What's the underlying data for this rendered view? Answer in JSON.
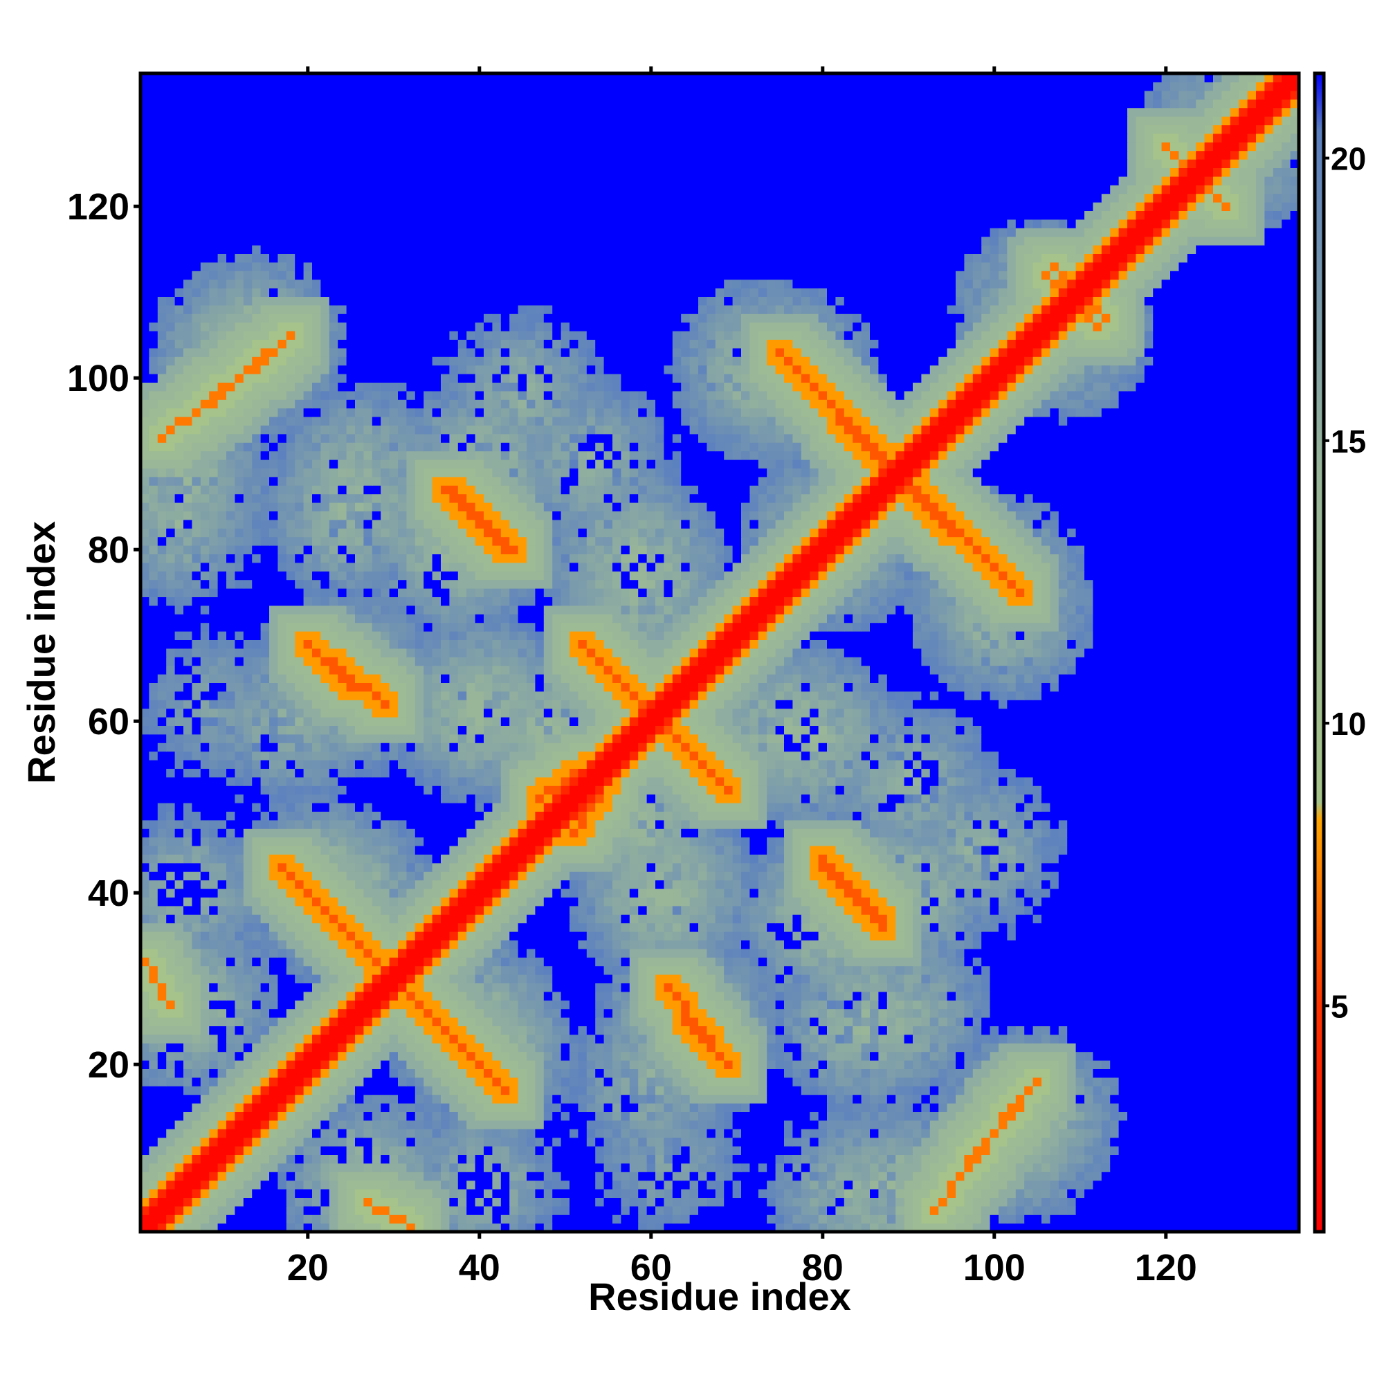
{
  "chart_data": {
    "type": "heatmap",
    "title": "",
    "xlabel": "Residue index",
    "ylabel": "Residue index",
    "n_residues": 135,
    "xlim": [
      0.5,
      135.5
    ],
    "ylim": [
      0.5,
      135.5
    ],
    "x_ticks": [
      20,
      40,
      60,
      80,
      100,
      120
    ],
    "y_ticks": [
      20,
      40,
      60,
      80,
      100,
      120
    ],
    "colorbar": {
      "ticks": [
        5,
        10,
        15,
        20
      ],
      "range": [
        1,
        21.5
      ],
      "colors": [
        {
          "value": 1,
          "color": "#ff0000"
        },
        {
          "value": 5,
          "color": "#ff3300"
        },
        {
          "value": 8.3,
          "color": "#ffa500"
        },
        {
          "value": 8.6,
          "color": "#a6c48a"
        },
        {
          "value": 14.5,
          "color": "#98b59a"
        },
        {
          "value": 20.5,
          "color": "#5a7fc0"
        },
        {
          "value": 21.5,
          "color": "#0000ff"
        }
      ]
    },
    "symmetric": true,
    "background_value": 21.5,
    "contact_bands": [
      {
        "type": "diagonal",
        "from": [
          1,
          1
        ],
        "to": [
          135,
          135
        ],
        "value": 2
      },
      {
        "type": "anti",
        "from": [
          17,
          43
        ],
        "to": [
          31,
          29
        ],
        "value": 6
      },
      {
        "type": "anti",
        "from": [
          27,
          4
        ],
        "to": [
          32,
          1
        ],
        "value": 7
      },
      {
        "type": "anti",
        "from": [
          25,
          64
        ],
        "to": [
          20,
          69
        ],
        "value": 6
      },
      {
        "type": "anti",
        "from": [
          9,
          97
        ],
        "to": [
          18,
          105
        ],
        "value": 7
      },
      {
        "type": "anti",
        "from": [
          36,
          87
        ],
        "to": [
          43,
          80
        ],
        "value": 6
      },
      {
        "type": "anti",
        "from": [
          52,
          69
        ],
        "to": [
          68,
          53
        ],
        "value": 6
      },
      {
        "type": "anti",
        "from": [
          62,
          29
        ],
        "to": [
          69,
          20
        ],
        "value": 6
      },
      {
        "type": "anti",
        "from": [
          75,
          103
        ],
        "to": [
          88,
          90
        ],
        "value": 6
      },
      {
        "type": "anti",
        "from": [
          80,
          44
        ],
        "to": [
          87,
          37
        ],
        "value": 6
      },
      {
        "type": "anti",
        "from": [
          90,
          87
        ],
        "to": [
          102,
          76
        ],
        "value": 6
      },
      {
        "type": "anti",
        "from": [
          93,
          3
        ],
        "to": [
          105,
          18
        ],
        "value": 7
      },
      {
        "type": "anti",
        "from": [
          106,
          112
        ],
        "to": [
          113,
          107
        ],
        "value": 7
      },
      {
        "type": "anti",
        "from": [
          120,
          127
        ],
        "to": [
          127,
          120
        ],
        "value": 7
      },
      {
        "type": "diagonal",
        "from": [
          47,
          51
        ],
        "to": [
          53,
          55
        ],
        "value": 6
      }
    ],
    "contact_halos": [
      {
        "center": [
          14,
          104
        ],
        "value": 12
      },
      {
        "center": [
          25,
          85
        ],
        "value": 12
      },
      {
        "center": [
          24,
          65
        ],
        "value": 12
      },
      {
        "center": [
          9,
          62
        ],
        "value": 14
      },
      {
        "center": [
          22,
          41
        ],
        "value": 12
      },
      {
        "center": [
          40,
          61
        ],
        "value": 12
      },
      {
        "center": [
          40,
          89
        ],
        "value": 12
      },
      {
        "center": [
          45,
          98
        ],
        "value": 13
      },
      {
        "center": [
          58,
          79
        ],
        "value": 12
      },
      {
        "center": [
          59,
          48
        ],
        "value": 12
      },
      {
        "center": [
          62,
          40
        ],
        "value": 12
      },
      {
        "center": [
          60,
          18
        ],
        "value": 13
      },
      {
        "center": [
          39,
          25
        ],
        "value": 12
      },
      {
        "center": [
          40,
          6
        ],
        "value": 13
      },
      {
        "center": [
          73,
          101
        ],
        "value": 12
      },
      {
        "center": [
          76,
          59
        ],
        "value": 12
      },
      {
        "center": [
          80,
          37
        ],
        "value": 12
      },
      {
        "center": [
          81,
          81
        ],
        "value": 12
      },
      {
        "center": [
          83,
          5
        ],
        "value": 13
      },
      {
        "center": [
          100,
          76
        ],
        "value": 12
      },
      {
        "center": [
          103,
          12
        ],
        "value": 12
      },
      {
        "center": [
          108,
          106
        ],
        "value": 12
      },
      {
        "center": [
          6,
          27
        ],
        "value": 12
      },
      {
        "center": [
          5,
          88
        ],
        "value": 12
      },
      {
        "center": [
          64,
          25
        ],
        "value": 12
      },
      {
        "center": [
          90,
          26
        ],
        "value": 13
      },
      {
        "center": [
          90,
          53
        ],
        "value": 13
      },
      {
        "center": [
          127,
          127
        ],
        "value": 12
      }
    ]
  }
}
